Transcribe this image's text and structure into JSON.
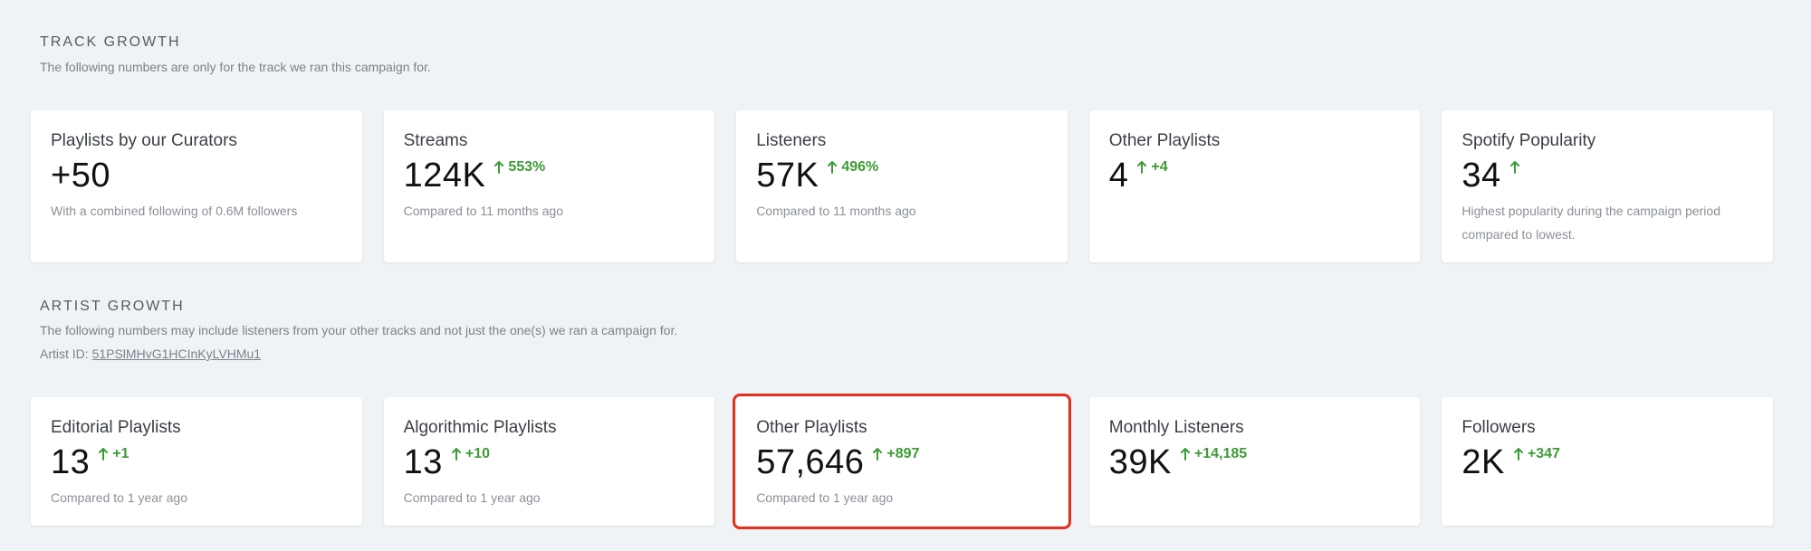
{
  "track_growth": {
    "title": "TRACK GROWTH",
    "subtitle": "The following numbers are only for the track we ran this campaign for.",
    "cards": [
      {
        "label": "Playlists by our Curators",
        "value": "+50",
        "delta": "",
        "note": "With a combined following of 0.6M followers"
      },
      {
        "label": "Streams",
        "value": "124K",
        "delta": "553%",
        "note": "Compared to 11 months ago"
      },
      {
        "label": "Listeners",
        "value": "57K",
        "delta": "496%",
        "note": "Compared to 11 months ago"
      },
      {
        "label": "Other Playlists",
        "value": "4",
        "delta": "+4",
        "note": ""
      },
      {
        "label": "Spotify Popularity",
        "value": "34",
        "delta": "",
        "note": "Highest popularity during the campaign period compared to lowest."
      }
    ]
  },
  "artist_growth": {
    "title": "ARTIST GROWTH",
    "subtitle": "The following numbers may include listeners from your other tracks and not just the one(s) we ran a campaign for.",
    "artist_id_label": "Artist ID: ",
    "artist_id": "51PSlMHvG1HCInKyLVHMu1",
    "cards": [
      {
        "label": "Editorial Playlists",
        "value": "13",
        "delta": "+1",
        "note": "Compared to 1 year ago"
      },
      {
        "label": "Algorithmic Playlists",
        "value": "13",
        "delta": "+10",
        "note": "Compared to 1 year ago"
      },
      {
        "label": "Other Playlists",
        "value": "57,646",
        "delta": "+897",
        "note": "Compared to 1 year ago"
      },
      {
        "label": "Monthly Listeners",
        "value": "39K",
        "delta": "+14,185",
        "note": ""
      },
      {
        "label": "Followers",
        "value": "2K",
        "delta": "+347",
        "note": ""
      }
    ]
  },
  "colors": {
    "positive": "#3d9b35",
    "highlight_border": "#e2321f",
    "background": "#f0f3f6"
  },
  "icons": {
    "delta": "up-arrow-icon"
  }
}
